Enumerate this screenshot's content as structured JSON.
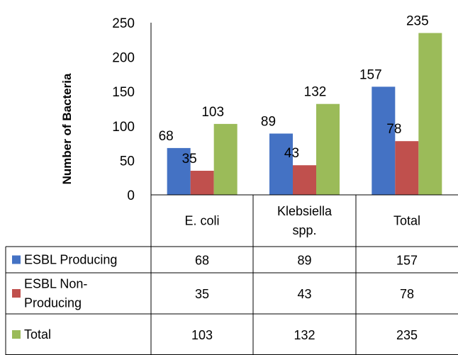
{
  "chart_data": {
    "type": "bar",
    "categories": [
      "E. coli",
      "Klebsiella spp.",
      "Total"
    ],
    "category_lines": [
      [
        "E. coli"
      ],
      [
        "Klebsiella",
        "spp."
      ],
      [
        "Total"
      ]
    ],
    "series": [
      {
        "name": "ESBL Producing",
        "name_lines": [
          "ESBL Producing"
        ],
        "color": "#4472C4",
        "values": [
          68,
          89,
          157
        ]
      },
      {
        "name": "ESBL Non-Producing",
        "name_lines": [
          "ESBL Non-",
          "Producing"
        ],
        "color": "#C0504D",
        "values": [
          35,
          43,
          78
        ]
      },
      {
        "name": "Total",
        "name_lines": [
          "Total"
        ],
        "color": "#9BBB59",
        "values": [
          103,
          132,
          235
        ]
      }
    ],
    "ylabel": "Number of Bacteria",
    "ylim": [
      0,
      250
    ],
    "yticks": [
      0,
      50,
      100,
      150,
      200,
      250
    ],
    "grid": false,
    "legend": "data-table"
  }
}
